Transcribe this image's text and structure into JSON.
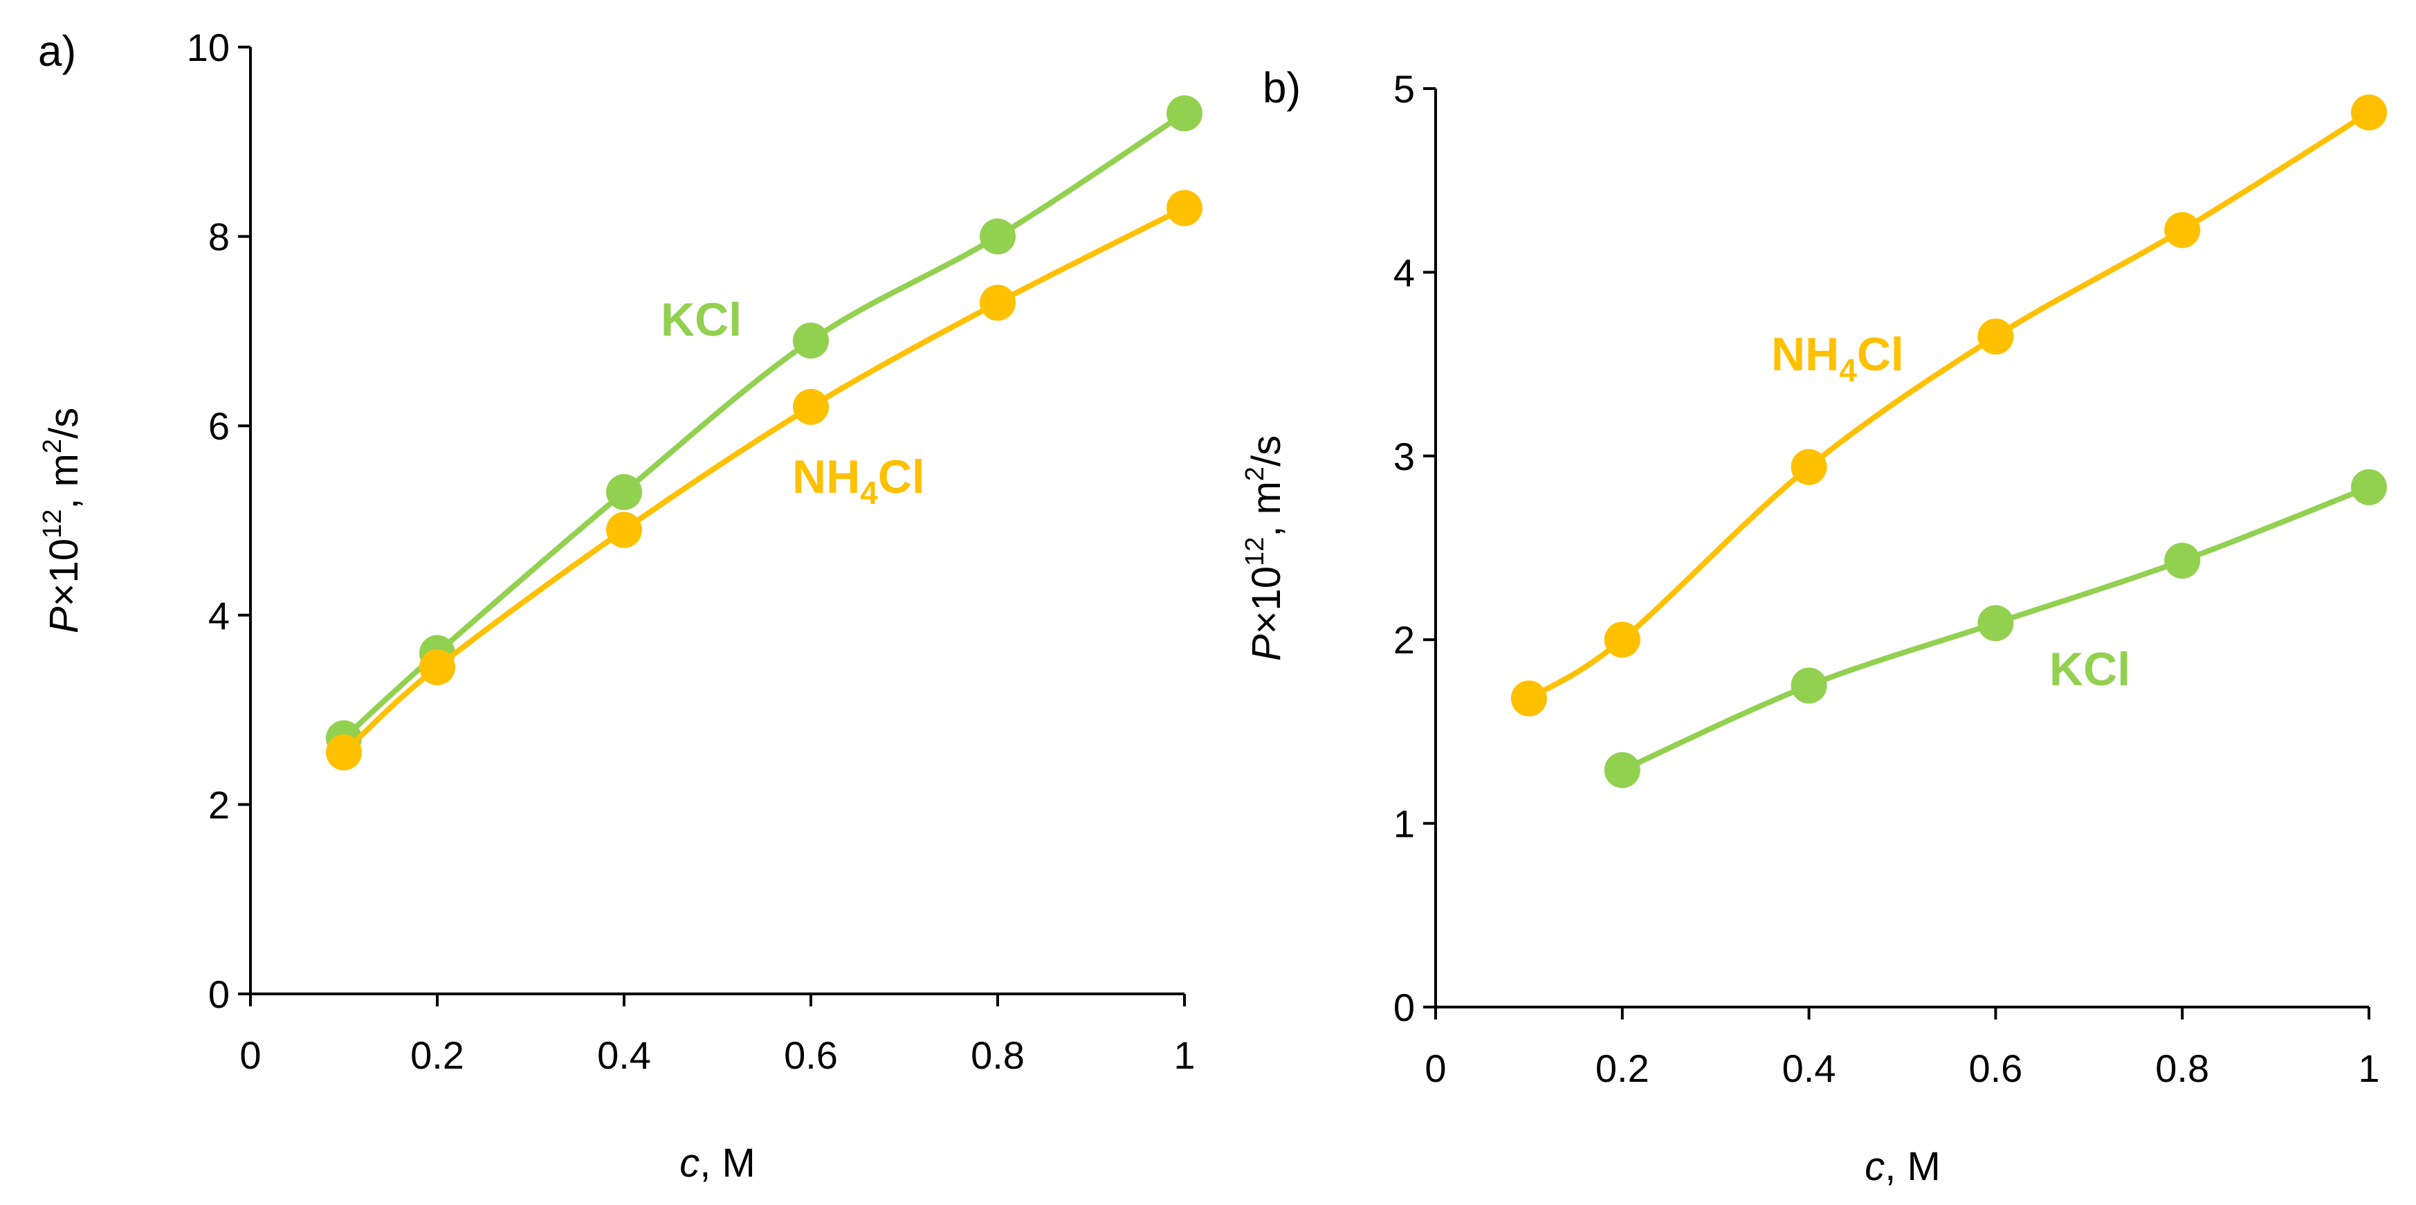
{
  "colors": {
    "kcl": "#92D050",
    "nh4cl": "#FFC000",
    "axis": "#000000"
  },
  "chart_data": [
    {
      "type": "line",
      "panel": "a)",
      "xlabel": {
        "italic": "c",
        "rest": ", M"
      },
      "ylabel": {
        "italic": "P",
        "times": "×10",
        "exp": "12",
        "unit": ", m",
        "unit_exp": "2",
        "unit_tail": "/s"
      },
      "xlim": [
        0,
        1
      ],
      "ylim": [
        0,
        10
      ],
      "xticks": [
        0,
        0.2,
        0.4,
        0.6,
        0.8,
        1
      ],
      "xtick_labels": [
        "0",
        "0.2",
        "0.4",
        "0.6",
        "0.8",
        "1"
      ],
      "yticks": [
        0,
        2,
        4,
        6,
        8,
        10
      ],
      "ytick_labels": [
        "0",
        "2",
        "4",
        "6",
        "8",
        "10"
      ],
      "series": [
        {
          "key": "kcl",
          "name": "KCl",
          "label": {
            "main": "KCl",
            "sub": "",
            "tail": ""
          },
          "x": [
            0.1,
            0.2,
            0.4,
            0.6,
            0.8,
            1.0
          ],
          "y": [
            2.7,
            3.6,
            5.3,
            6.9,
            8.0,
            9.3
          ]
        },
        {
          "key": "nh4cl",
          "name": "NH4Cl",
          "label": {
            "main": "NH",
            "sub": "4",
            "tail": "Cl"
          },
          "x": [
            0.1,
            0.2,
            0.4,
            0.6,
            0.8,
            1.0
          ],
          "y": [
            2.55,
            3.45,
            4.9,
            6.2,
            7.3,
            8.3
          ]
        }
      ]
    },
    {
      "type": "line",
      "panel": "b)",
      "xlabel": {
        "italic": "c",
        "rest": ", M"
      },
      "ylabel": {
        "italic": "P",
        "times": "×10",
        "exp": "12",
        "unit": ", m",
        "unit_exp": "2",
        "unit_tail": "/s"
      },
      "xlim": [
        0,
        1
      ],
      "ylim": [
        0,
        5
      ],
      "xticks": [
        0,
        0.2,
        0.4,
        0.6,
        0.8,
        1
      ],
      "xtick_labels": [
        "0",
        "0.2",
        "0.4",
        "0.6",
        "0.8",
        "1"
      ],
      "yticks": [
        0,
        1,
        2,
        3,
        4,
        5
      ],
      "ytick_labels": [
        "0",
        "1",
        "2",
        "3",
        "4",
        "5"
      ],
      "series": [
        {
          "key": "nh4cl",
          "name": "NH4Cl",
          "label": {
            "main": "NH",
            "sub": "4",
            "tail": "Cl"
          },
          "x": [
            0.1,
            0.2,
            0.4,
            0.6,
            0.8,
            1.0
          ],
          "y": [
            1.68,
            2.0,
            2.94,
            3.65,
            4.23,
            4.87
          ]
        },
        {
          "key": "kcl",
          "name": "KCl",
          "label": {
            "main": "KCl",
            "sub": "",
            "tail": ""
          },
          "x": [
            0.2,
            0.4,
            0.6,
            0.8,
            1.0
          ],
          "y": [
            1.29,
            1.75,
            2.09,
            2.43,
            2.83
          ]
        }
      ]
    }
  ]
}
